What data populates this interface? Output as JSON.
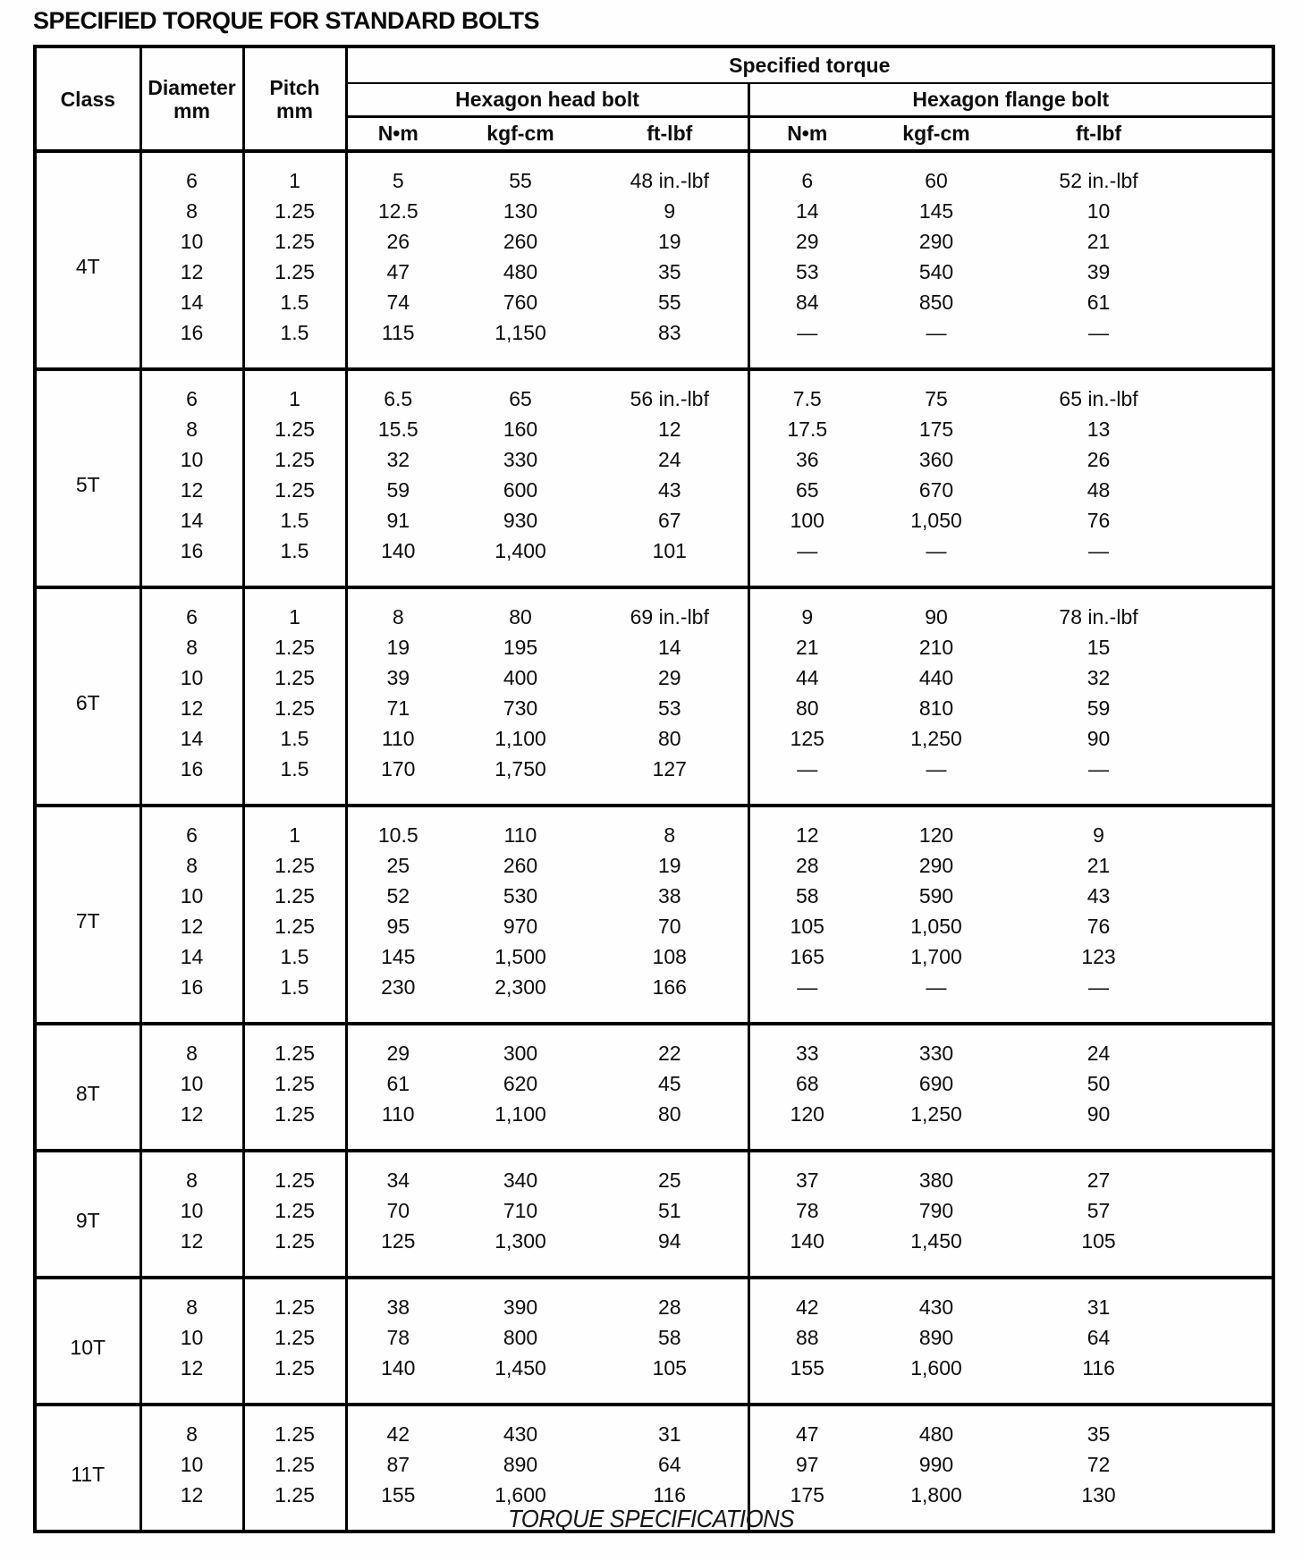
{
  "page": {
    "title": "SPECIFIED TORQUE FOR STANDARD BOLTS",
    "caption": "TORQUE SPECIFICATIONS"
  },
  "table": {
    "headers": {
      "class": "Class",
      "diameter": "Diameter",
      "diameter_unit": "mm",
      "pitch": "Pitch",
      "pitch_unit": "mm",
      "specified_torque": "Specified torque",
      "hexagon_head_bolt": "Hexagon head bolt",
      "hexagon_flange_bolt": "Hexagon flange bolt",
      "units": [
        "N•m",
        "kgf-cm",
        "ft-lbf",
        "N•m",
        "kgf-cm",
        "ft-lbf"
      ]
    },
    "sections": [
      {
        "class": "4T",
        "rows": [
          {
            "diameter": "6",
            "pitch": "1",
            "head": [
              "5",
              "55",
              "48 in.-lbf"
            ],
            "flange": [
              "6",
              "60",
              "52 in.-lbf"
            ]
          },
          {
            "diameter": "8",
            "pitch": "1.25",
            "head": [
              "12.5",
              "130",
              "9"
            ],
            "flange": [
              "14",
              "145",
              "10"
            ]
          },
          {
            "diameter": "10",
            "pitch": "1.25",
            "head": [
              "26",
              "260",
              "19"
            ],
            "flange": [
              "29",
              "290",
              "21"
            ]
          },
          {
            "diameter": "12",
            "pitch": "1.25",
            "head": [
              "47",
              "480",
              "35"
            ],
            "flange": [
              "53",
              "540",
              "39"
            ]
          },
          {
            "diameter": "14",
            "pitch": "1.5",
            "head": [
              "74",
              "760",
              "55"
            ],
            "flange": [
              "84",
              "850",
              "61"
            ]
          },
          {
            "diameter": "16",
            "pitch": "1.5",
            "head": [
              "115",
              "1,150",
              "83"
            ],
            "flange": [
              "—",
              "—",
              "—"
            ]
          }
        ]
      },
      {
        "class": "5T",
        "rows": [
          {
            "diameter": "6",
            "pitch": "1",
            "head": [
              "6.5",
              "65",
              "56 in.-lbf"
            ],
            "flange": [
              "7.5",
              "75",
              "65 in.-lbf"
            ]
          },
          {
            "diameter": "8",
            "pitch": "1.25",
            "head": [
              "15.5",
              "160",
              "12"
            ],
            "flange": [
              "17.5",
              "175",
              "13"
            ]
          },
          {
            "diameter": "10",
            "pitch": "1.25",
            "head": [
              "32",
              "330",
              "24"
            ],
            "flange": [
              "36",
              "360",
              "26"
            ]
          },
          {
            "diameter": "12",
            "pitch": "1.25",
            "head": [
              "59",
              "600",
              "43"
            ],
            "flange": [
              "65",
              "670",
              "48"
            ]
          },
          {
            "diameter": "14",
            "pitch": "1.5",
            "head": [
              "91",
              "930",
              "67"
            ],
            "flange": [
              "100",
              "1,050",
              "76"
            ]
          },
          {
            "diameter": "16",
            "pitch": "1.5",
            "head": [
              "140",
              "1,400",
              "101"
            ],
            "flange": [
              "—",
              "—",
              "—"
            ]
          }
        ]
      },
      {
        "class": "6T",
        "rows": [
          {
            "diameter": "6",
            "pitch": "1",
            "head": [
              "8",
              "80",
              "69 in.-lbf"
            ],
            "flange": [
              "9",
              "90",
              "78 in.-lbf"
            ]
          },
          {
            "diameter": "8",
            "pitch": "1.25",
            "head": [
              "19",
              "195",
              "14"
            ],
            "flange": [
              "21",
              "210",
              "15"
            ]
          },
          {
            "diameter": "10",
            "pitch": "1.25",
            "head": [
              "39",
              "400",
              "29"
            ],
            "flange": [
              "44",
              "440",
              "32"
            ]
          },
          {
            "diameter": "12",
            "pitch": "1.25",
            "head": [
              "71",
              "730",
              "53"
            ],
            "flange": [
              "80",
              "810",
              "59"
            ]
          },
          {
            "diameter": "14",
            "pitch": "1.5",
            "head": [
              "110",
              "1,100",
              "80"
            ],
            "flange": [
              "125",
              "1,250",
              "90"
            ]
          },
          {
            "diameter": "16",
            "pitch": "1.5",
            "head": [
              "170",
              "1,750",
              "127"
            ],
            "flange": [
              "—",
              "—",
              "—"
            ]
          }
        ]
      },
      {
        "class": "7T",
        "rows": [
          {
            "diameter": "6",
            "pitch": "1",
            "head": [
              "10.5",
              "110",
              "8"
            ],
            "flange": [
              "12",
              "120",
              "9"
            ]
          },
          {
            "diameter": "8",
            "pitch": "1.25",
            "head": [
              "25",
              "260",
              "19"
            ],
            "flange": [
              "28",
              "290",
              "21"
            ]
          },
          {
            "diameter": "10",
            "pitch": "1.25",
            "head": [
              "52",
              "530",
              "38"
            ],
            "flange": [
              "58",
              "590",
              "43"
            ]
          },
          {
            "diameter": "12",
            "pitch": "1.25",
            "head": [
              "95",
              "970",
              "70"
            ],
            "flange": [
              "105",
              "1,050",
              "76"
            ]
          },
          {
            "diameter": "14",
            "pitch": "1.5",
            "head": [
              "145",
              "1,500",
              "108"
            ],
            "flange": [
              "165",
              "1,700",
              "123"
            ]
          },
          {
            "diameter": "16",
            "pitch": "1.5",
            "head": [
              "230",
              "2,300",
              "166"
            ],
            "flange": [
              "—",
              "—",
              "—"
            ]
          }
        ]
      },
      {
        "class": "8T",
        "rows": [
          {
            "diameter": "8",
            "pitch": "1.25",
            "head": [
              "29",
              "300",
              "22"
            ],
            "flange": [
              "33",
              "330",
              "24"
            ]
          },
          {
            "diameter": "10",
            "pitch": "1.25",
            "head": [
              "61",
              "620",
              "45"
            ],
            "flange": [
              "68",
              "690",
              "50"
            ]
          },
          {
            "diameter": "12",
            "pitch": "1.25",
            "head": [
              "110",
              "1,100",
              "80"
            ],
            "flange": [
              "120",
              "1,250",
              "90"
            ]
          }
        ]
      },
      {
        "class": "9T",
        "rows": [
          {
            "diameter": "8",
            "pitch": "1.25",
            "head": [
              "34",
              "340",
              "25"
            ],
            "flange": [
              "37",
              "380",
              "27"
            ]
          },
          {
            "diameter": "10",
            "pitch": "1.25",
            "head": [
              "70",
              "710",
              "51"
            ],
            "flange": [
              "78",
              "790",
              "57"
            ]
          },
          {
            "diameter": "12",
            "pitch": "1.25",
            "head": [
              "125",
              "1,300",
              "94"
            ],
            "flange": [
              "140",
              "1,450",
              "105"
            ]
          }
        ]
      },
      {
        "class": "10T",
        "rows": [
          {
            "diameter": "8",
            "pitch": "1.25",
            "head": [
              "38",
              "390",
              "28"
            ],
            "flange": [
              "42",
              "430",
              "31"
            ]
          },
          {
            "diameter": "10",
            "pitch": "1.25",
            "head": [
              "78",
              "800",
              "58"
            ],
            "flange": [
              "88",
              "890",
              "64"
            ]
          },
          {
            "diameter": "12",
            "pitch": "1.25",
            "head": [
              "140",
              "1,450",
              "105"
            ],
            "flange": [
              "155",
              "1,600",
              "116"
            ]
          }
        ]
      },
      {
        "class": "11T",
        "rows": [
          {
            "diameter": "8",
            "pitch": "1.25",
            "head": [
              "42",
              "430",
              "31"
            ],
            "flange": [
              "47",
              "480",
              "35"
            ]
          },
          {
            "diameter": "10",
            "pitch": "1.25",
            "head": [
              "87",
              "890",
              "64"
            ],
            "flange": [
              "97",
              "990",
              "72"
            ]
          },
          {
            "diameter": "12",
            "pitch": "1.25",
            "head": [
              "155",
              "1,600",
              "116"
            ],
            "flange": [
              "175",
              "1,800",
              "130"
            ]
          }
        ]
      }
    ]
  }
}
